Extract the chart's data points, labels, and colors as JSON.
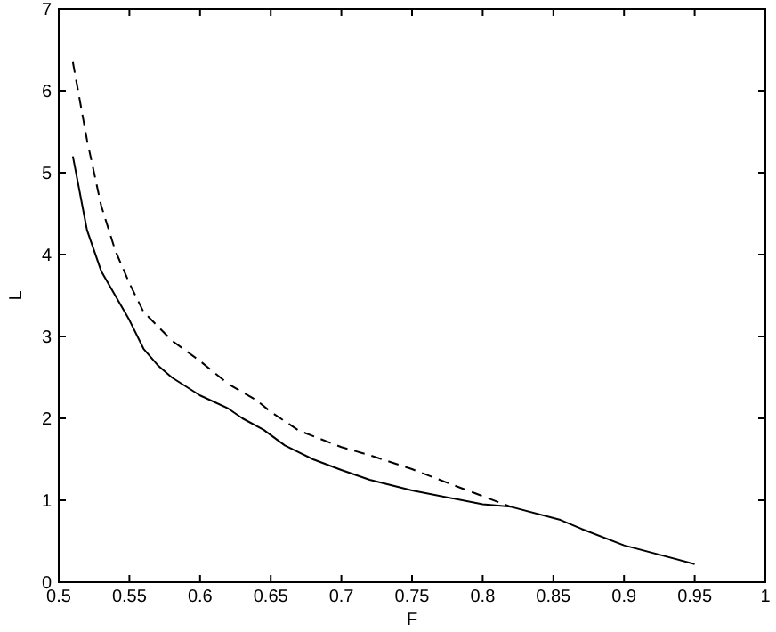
{
  "chart_data": {
    "type": "line",
    "xlabel": "F",
    "ylabel": "L",
    "xlim": [
      0.5,
      1
    ],
    "ylim": [
      0,
      7
    ],
    "xticks": [
      0.5,
      0.55,
      0.6,
      0.65,
      0.7,
      0.75,
      0.8,
      0.85,
      0.9,
      0.95,
      1
    ],
    "yticks": [
      0,
      1,
      2,
      3,
      4,
      5,
      6,
      7
    ],
    "series": [
      {
        "color": "#000000",
        "line_style": "solid",
        "x": [
          0.51,
          0.52,
          0.53,
          0.54,
          0.55,
          0.56,
          0.57,
          0.58,
          0.6,
          0.62,
          0.63,
          0.645,
          0.66,
          0.68,
          0.7,
          0.72,
          0.75,
          0.8,
          0.82,
          0.855,
          0.87,
          0.9,
          0.95
        ],
        "values": [
          5.2,
          4.3,
          3.8,
          3.5,
          3.2,
          2.85,
          2.65,
          2.5,
          2.28,
          2.12,
          2.0,
          1.86,
          1.67,
          1.5,
          1.37,
          1.25,
          1.12,
          0.95,
          0.92,
          0.76,
          0.65,
          0.45,
          0.22
        ]
      },
      {
        "color": "#000000",
        "line_style": "dashed",
        "x": [
          0.51,
          0.52,
          0.53,
          0.54,
          0.55,
          0.56,
          0.58,
          0.6,
          0.62,
          0.64,
          0.65,
          0.67,
          0.7,
          0.72,
          0.75,
          0.78,
          0.8,
          0.82
        ],
        "values": [
          6.35,
          5.4,
          4.6,
          4.05,
          3.65,
          3.3,
          2.95,
          2.7,
          2.42,
          2.22,
          2.08,
          1.85,
          1.65,
          1.55,
          1.38,
          1.18,
          1.05,
          0.92
        ]
      }
    ]
  }
}
